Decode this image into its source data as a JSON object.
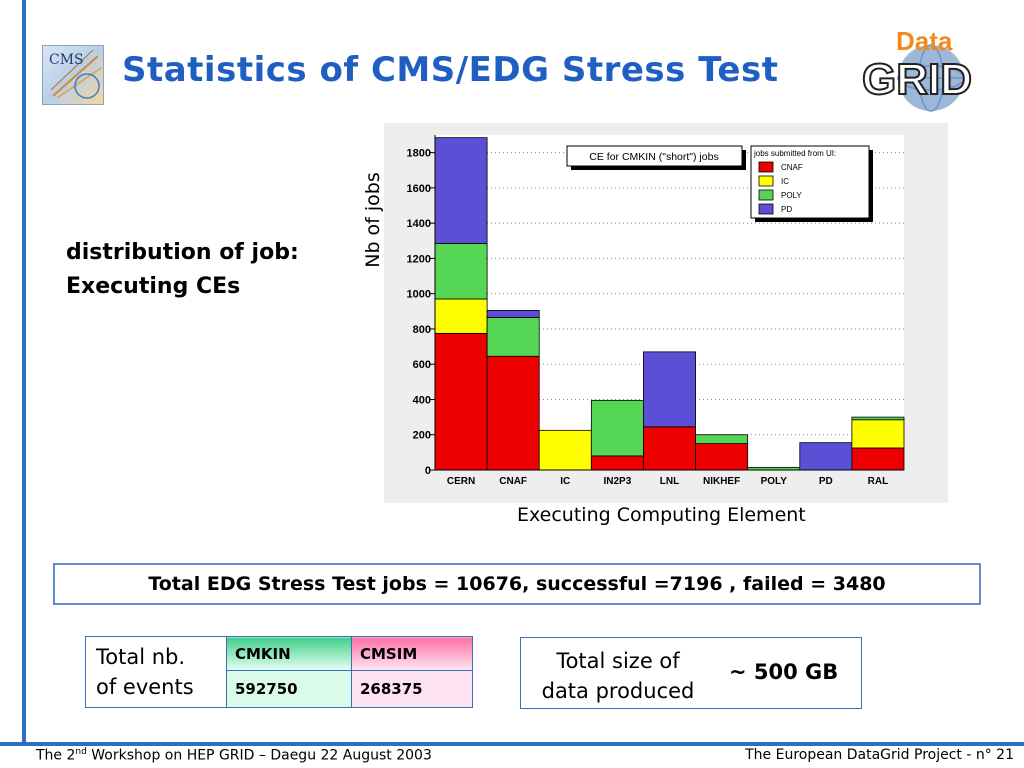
{
  "header": {
    "title": "Statistics of CMS/EDG Stress Test",
    "cms_logo_text": "CMS",
    "datagrid_logo_text_top": "Data",
    "datagrid_logo_text_bottom": "GRID"
  },
  "side_text": {
    "line1": "distribution of job:",
    "line2": "Executing CEs"
  },
  "chart_data": {
    "type": "bar",
    "stacked": true,
    "title": "CE for CMKIN (\"short\") jobs",
    "xlabel": "Executing Computing Element",
    "ylabel": "Nb of jobs",
    "ylim": [
      0,
      1900
    ],
    "yticks": [
      0,
      200,
      400,
      600,
      800,
      1000,
      1200,
      1400,
      1600,
      1800
    ],
    "grid": true,
    "legend_title": "jobs submitted from UI:",
    "legend_position": "top-right",
    "categories": [
      "CERN",
      "CNAF",
      "IC",
      "IN2P3",
      "LNL",
      "NIKHEF",
      "POLY",
      "PD",
      "RAL"
    ],
    "series": [
      {
        "name": "CNAF",
        "color": "#ee0000",
        "values": [
          775,
          645,
          0,
          80,
          245,
          150,
          0,
          0,
          125
        ]
      },
      {
        "name": "IC",
        "color": "#ffff00",
        "values": [
          195,
          0,
          225,
          0,
          0,
          0,
          0,
          0,
          160
        ]
      },
      {
        "name": "POLY",
        "color": "#55d655",
        "values": [
          315,
          220,
          0,
          315,
          0,
          50,
          15,
          0,
          15
        ]
      },
      {
        "name": "PD",
        "color": "#5b4fd6",
        "values": [
          600,
          40,
          0,
          0,
          425,
          0,
          0,
          155,
          0
        ]
      }
    ]
  },
  "summary": {
    "total_line": "Total EDG Stress Test jobs = 10676, successful =7196 , failed = 3480"
  },
  "events_table": {
    "row_label_line1": "Total nb.",
    "row_label_line2": "of events",
    "headers": [
      "CMKIN",
      "CMSIM"
    ],
    "values": [
      "592750",
      "268375"
    ]
  },
  "data_size": {
    "label_line1": "Total size of",
    "label_line2": "data produced",
    "value": "~ 500 GB"
  },
  "footer": {
    "left_pre": "The 2",
    "left_sup": "nd",
    "left_post": " Workshop on HEP GRID – Daegu 22 August 2003",
    "right": "The European DataGrid Project - n° 21"
  }
}
